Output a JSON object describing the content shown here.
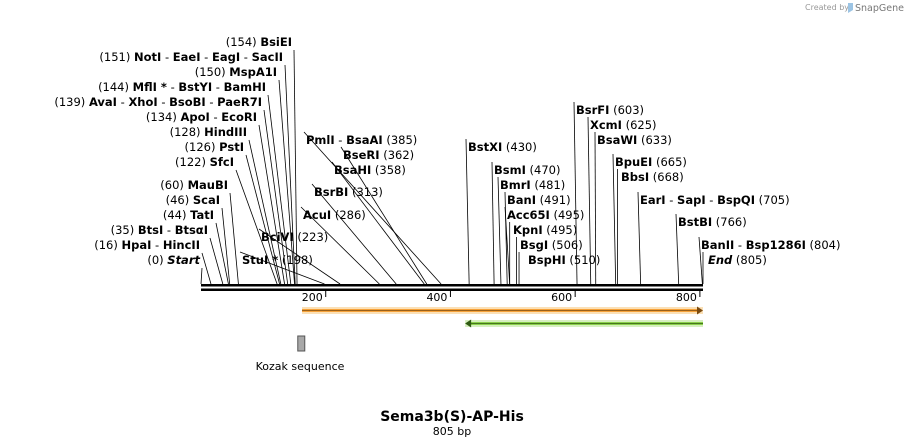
{
  "branding": {
    "created_by": "Created by",
    "product": "SnapGene"
  },
  "map": {
    "title": "Sema3b(S)-AP-His",
    "length_label": "805 bp",
    "total_bp": 805,
    "ticks": [
      200,
      400,
      600,
      800
    ],
    "features": [
      {
        "name": "Kozak sequence",
        "start": 160,
        "end": 170,
        "type": "box",
        "color": "#a8a8a8"
      },
      {
        "name": "",
        "start": 162,
        "end": 805,
        "type": "arrow-right",
        "color": "#f6a23a"
      },
      {
        "name": "",
        "start": 276,
        "end": 805,
        "type": "arrow-left",
        "color": "#8ad04a"
      }
    ],
    "sites": [
      {
        "pos": "(0)",
        "bp": 0,
        "names": [
          "Start"
        ],
        "italic": true
      },
      {
        "pos": "(16)",
        "bp": 16,
        "names": [
          "HpaI",
          "HincII"
        ]
      },
      {
        "pos": "(35)",
        "bp": 35,
        "names": [
          "BtsI",
          "BtsαI"
        ]
      },
      {
        "pos": "(44)",
        "bp": 44,
        "names": [
          "TatI"
        ]
      },
      {
        "pos": "(46)",
        "bp": 46,
        "names": [
          "ScaI"
        ]
      },
      {
        "pos": "(60)",
        "bp": 60,
        "names": [
          "MauBI"
        ]
      },
      {
        "pos": "(122)",
        "bp": 122,
        "names": [
          "SfcI"
        ]
      },
      {
        "pos": "(126)",
        "bp": 126,
        "names": [
          "PstI"
        ]
      },
      {
        "pos": "(128)",
        "bp": 128,
        "names": [
          "HindIII"
        ]
      },
      {
        "pos": "(134)",
        "bp": 134,
        "names": [
          "ApoI",
          "EcoRI"
        ]
      },
      {
        "pos": "(139)",
        "bp": 139,
        "names": [
          "AvaI",
          "XhoI",
          "BsoBI",
          "PaeR7I"
        ]
      },
      {
        "pos": "(144)",
        "bp": 144,
        "names": [
          "MflI *",
          "BstYI",
          "BamHI"
        ]
      },
      {
        "pos": "(150)",
        "bp": 150,
        "names": [
          "MspA1I"
        ]
      },
      {
        "pos": "(151)",
        "bp": 151,
        "names": [
          "NotI",
          "EaeI",
          "EagI",
          "SacII"
        ]
      },
      {
        "pos": "(154)",
        "bp": 154,
        "names": [
          "BsiEI"
        ]
      },
      {
        "pos": "(198)",
        "bp": 198,
        "names": [
          "StuI *"
        ]
      },
      {
        "pos": "(223)",
        "bp": 223,
        "names": [
          "BciVI"
        ]
      },
      {
        "pos": "(286)",
        "bp": 286,
        "names": [
          "AcuI"
        ]
      },
      {
        "pos": "(313)",
        "bp": 313,
        "names": [
          "BsrBI"
        ]
      },
      {
        "pos": "(358)",
        "bp": 358,
        "names": [
          "BsaHI"
        ]
      },
      {
        "pos": "(362)",
        "bp": 362,
        "names": [
          "BseRI"
        ]
      },
      {
        "pos": "(385)",
        "bp": 385,
        "names": [
          "PmlI",
          "BsaAI"
        ]
      },
      {
        "pos": "(430)",
        "bp": 430,
        "names": [
          "BstXI"
        ]
      },
      {
        "pos": "(470)",
        "bp": 470,
        "names": [
          "BsmI"
        ]
      },
      {
        "pos": "(481)",
        "bp": 481,
        "names": [
          "BmrI"
        ]
      },
      {
        "pos": "(491)",
        "bp": 491,
        "names": [
          "BanI"
        ]
      },
      {
        "pos": "(495)",
        "bp": 495,
        "names": [
          "Acc65I"
        ]
      },
      {
        "pos": "(495)",
        "bp": 495,
        "names": [
          "KpnI"
        ]
      },
      {
        "pos": "(506)",
        "bp": 506,
        "names": [
          "BsgI"
        ]
      },
      {
        "pos": "(510)",
        "bp": 510,
        "names": [
          "BspHI"
        ]
      },
      {
        "pos": "(603)",
        "bp": 603,
        "names": [
          "BsrFI"
        ]
      },
      {
        "pos": "(625)",
        "bp": 625,
        "names": [
          "XcmI"
        ]
      },
      {
        "pos": "(633)",
        "bp": 633,
        "names": [
          "BsaWI"
        ]
      },
      {
        "pos": "(665)",
        "bp": 665,
        "names": [
          "BpuEI"
        ]
      },
      {
        "pos": "(668)",
        "bp": 668,
        "names": [
          "BbsI"
        ]
      },
      {
        "pos": "(705)",
        "bp": 705,
        "names": [
          "EarI",
          "SapI",
          "BspQI"
        ]
      },
      {
        "pos": "(766)",
        "bp": 766,
        "names": [
          "BstBI"
        ]
      },
      {
        "pos": "(804)",
        "bp": 804,
        "names": [
          "BanII",
          "Bsp1286I"
        ]
      },
      {
        "pos": "(805)",
        "bp": 805,
        "names": [
          "End"
        ],
        "italic": true
      }
    ]
  }
}
